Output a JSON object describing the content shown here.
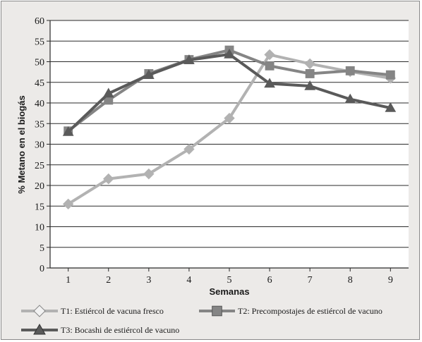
{
  "chart_data": {
    "type": "line",
    "xlabel": "Semanas",
    "ylabel": "% Metano en el biogás",
    "x": [
      1,
      2,
      3,
      4,
      5,
      6,
      7,
      8,
      9
    ],
    "xlim": [
      0.55,
      9.45
    ],
    "ylim": [
      0,
      60
    ],
    "ytick_step": 5,
    "grid": true,
    "legend_position": "bottom",
    "series": [
      {
        "name": "T1: Estiércol de vacuna fresco",
        "values": [
          15.5,
          21.6,
          22.8,
          28.8,
          36.3,
          51.7,
          49.5,
          47.6,
          46.0
        ],
        "color": "#b2b2b2",
        "marker": "diamond"
      },
      {
        "name": "T2: Precompostajes de estiércol de vacuno",
        "values": [
          33.2,
          40.7,
          47.1,
          50.5,
          52.8,
          49.0,
          47.1,
          47.8,
          46.8
        ],
        "color": "#858585",
        "marker": "square"
      },
      {
        "name": "T3: Bocashi de estiércol de vacuno",
        "values": [
          33.0,
          42.3,
          46.8,
          50.4,
          51.8,
          44.7,
          44.1,
          40.9,
          38.8
        ],
        "color": "#5a5a5a",
        "marker": "triangle"
      }
    ]
  }
}
